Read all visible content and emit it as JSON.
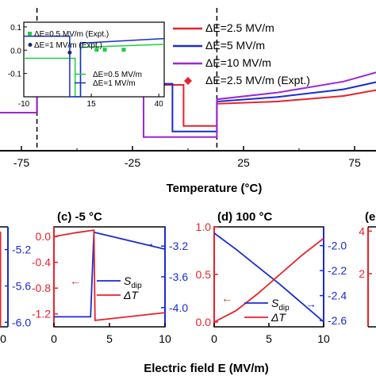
{
  "chart_data": [
    {
      "type": "line",
      "xlabel": "Temperature (°C)",
      "xlim": [
        -90,
        110
      ],
      "ylim": [
        -1.0,
        1.0
      ],
      "xticks": [
        "-75",
        "-25",
        "25",
        "75"
      ],
      "xtick_values": [
        -75,
        -25,
        25,
        75
      ],
      "dashed_lines_x": [
        -68,
        13
      ],
      "series": [
        {
          "name": "ΔE=2.5 MV/m",
          "color": "#e8212b",
          "x": [
            -90,
            -68,
            -68,
            -2,
            -2,
            13,
            13,
            40,
            70,
            95,
            110
          ],
          "y": [
            -0.3,
            -0.3,
            -0.05,
            -0.05,
            -0.42,
            -0.42,
            -0.22,
            -0.2,
            -0.15,
            -0.06,
            0.02
          ]
        },
        {
          "name": "ΔE=5 MV/m",
          "color": "#1a2ccf",
          "x": [
            -90,
            -68,
            -68,
            -7,
            -7,
            13,
            13,
            40,
            70,
            95,
            110
          ],
          "y": [
            -0.3,
            -0.3,
            -0.04,
            -0.04,
            -0.47,
            -0.47,
            -0.2,
            -0.16,
            -0.09,
            0.02,
            0.1
          ]
        },
        {
          "name": "ΔE=10 MV/m",
          "color": "#9b27d6",
          "x": [
            -90,
            -68,
            -68,
            -20,
            -20,
            13,
            13,
            40,
            70,
            95,
            110
          ],
          "y": [
            -0.3,
            -0.3,
            -0.03,
            -0.03,
            -0.52,
            -0.52,
            -0.18,
            -0.12,
            -0.02,
            0.12,
            0.22
          ]
        },
        {
          "name": "ΔE=2.5 MV/m (Expt.)",
          "color": "#e8212b",
          "marker": "diamond",
          "x": [],
          "y": []
        }
      ],
      "inset": {
        "xlim": [
          -10,
          42
        ],
        "ylim": [
          -0.2,
          0.12
        ],
        "xticks": [
          "-10",
          "15",
          "40"
        ],
        "yticks": [
          "0.1",
          "0.0",
          "-0.1"
        ],
        "series": [
          {
            "name": "ΔE=0.5 MV/m (Expt.)",
            "color": "#22cc44",
            "marker": "square",
            "x": [
              17,
              20,
              27
            ],
            "y": [
              0.002,
              0.002,
              0.002
            ]
          },
          {
            "name": "ΔE=1 MV/m (Expt.)",
            "color": "#1a2c6a",
            "marker": "circle",
            "x": [
              7
            ],
            "y": [
              -0.01
            ]
          },
          {
            "name": "ΔE=0.5 MV/m",
            "color": "#22cc44",
            "x": [
              -10,
              9,
              9,
              11,
              11,
              42
            ],
            "y": [
              -0.035,
              -0.035,
              -0.2,
              -0.2,
              0.012,
              0.025
            ]
          },
          {
            "name": "ΔE=1 MV/m",
            "color": "#1a2ccf",
            "x": [
              -10,
              7,
              7,
              11,
              11,
              42
            ],
            "y": [
              0.06,
              0.06,
              -0.2,
              -0.2,
              0.03,
              0.05
            ]
          }
        ]
      }
    },
    {
      "type": "line",
      "panel_label": "(c) -5 °C",
      "xlim": [
        0,
        10
      ],
      "ylim_left": [
        -1.4,
        0.15
      ],
      "ylim_right": [
        -4.25,
        -2.95
      ],
      "xticks": [
        "0",
        "5",
        "10"
      ],
      "yticks_left": [
        "0.0",
        "-0.4",
        "-0.8",
        "-1.2"
      ],
      "ytick_left_values": [
        0.0,
        -0.4,
        -0.8,
        -1.2
      ],
      "yticks_right": [
        "-3.2",
        "-3.6",
        "-4.0"
      ],
      "ytick_right_values": [
        -3.2,
        -3.6,
        -4.0
      ],
      "series": [
        {
          "name": "S",
          "name_sub": "dip",
          "color": "#1a2ccf",
          "axis": "right",
          "x": [
            0,
            3.3,
            3.6,
            3.6,
            10
          ],
          "y": [
            -4.12,
            -4.12,
            -3.02,
            -3.02,
            -3.24
          ]
        },
        {
          "name": "ΔT",
          "color": "#e8212b",
          "axis": "left",
          "x": [
            0,
            2,
            3.6,
            3.6,
            3.7,
            10
          ],
          "y": [
            0.0,
            0.06,
            0.1,
            0.1,
            -1.3,
            -1.18
          ]
        }
      ]
    },
    {
      "type": "line",
      "panel_label": "(d) 100 °C",
      "xlim": [
        0,
        10
      ],
      "ylim_left": [
        -0.05,
        1.0
      ],
      "ylim_right": [
        -2.65,
        -1.85
      ],
      "xticks": [
        "0",
        "5",
        "10"
      ],
      "yticks_left": [
        "1.0",
        "0.5",
        "0.0"
      ],
      "ytick_left_values": [
        1.0,
        0.5,
        0.0
      ],
      "yticks_right": [
        "-2.0",
        "-2.2",
        "-2.4",
        "-2.6"
      ],
      "ytick_right_values": [
        -2.0,
        -2.2,
        -2.4,
        -2.6
      ],
      "series": [
        {
          "name": "S",
          "name_sub": "dip",
          "color": "#1a2ccf",
          "axis": "right",
          "x": [
            0,
            2,
            4,
            6,
            8,
            10
          ],
          "y": [
            -1.9,
            -2.03,
            -2.17,
            -2.31,
            -2.46,
            -2.61
          ]
        },
        {
          "name": "ΔT",
          "color": "#e8212b",
          "axis": "left",
          "x": [
            0,
            2,
            4,
            6,
            8,
            10
          ],
          "y": [
            0.0,
            0.12,
            0.3,
            0.5,
            0.7,
            0.88
          ]
        }
      ]
    },
    {
      "type": "line",
      "panel_label": "(e",
      "ylim": [
        -0.5,
        4.2
      ],
      "yticks": [
        "4",
        "2"
      ],
      "ytick_values": [
        4,
        2
      ],
      "series": []
    },
    {
      "type": "line",
      "partial_left_panel": true,
      "xticks": [
        "0"
      ],
      "yticks_right": [
        "-5.2",
        "-5.6",
        "-6.0"
      ],
      "ytick_right_values": [
        -5.2,
        -5.6,
        -6.0
      ],
      "ylim_right": [
        -6.05,
        -4.95
      ]
    }
  ],
  "bottom_xlabel": "Electric field E (MV/m)",
  "arrows": {
    "left": "←",
    "right": "→"
  }
}
